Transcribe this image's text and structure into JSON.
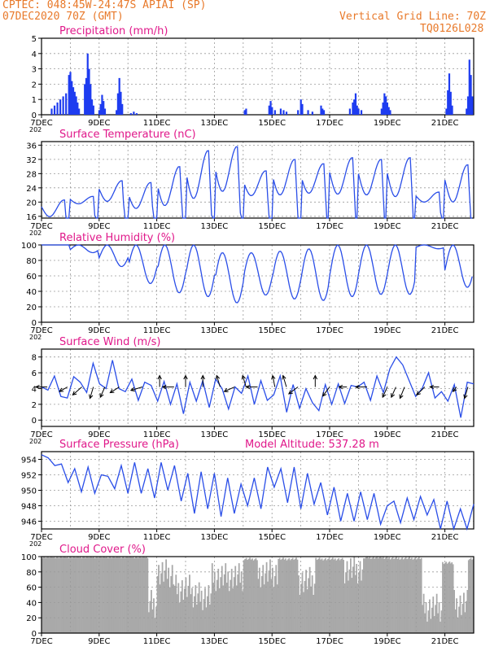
{
  "header": {
    "line1": "CPTEC:  048:45W-24:47S  APIAI (SP)",
    "line2": "07DEC2020 70Z (GMT)",
    "grid_note": "Vertical Grid Line: 70Z",
    "code": "TQ0126L028",
    "colors": {
      "header": "#e8792a",
      "title": "#e0188a",
      "line": "#2a4ee8",
      "bar": "#1e3cf0",
      "cloud": "#a9a9a9"
    }
  },
  "x_ticks": [
    "7DEC",
    "9DEC",
    "11DEC",
    "13DEC",
    "15DEC",
    "17DEC",
    "19DEC",
    "21DEC"
  ],
  "x_year_fragment": "202",
  "chart_data": [
    {
      "id": "precip",
      "type": "bar",
      "title": "Precipitation (mm/h)",
      "ylim": [
        0,
        5
      ],
      "yticks": [
        0,
        1,
        2,
        3,
        4,
        5
      ],
      "xlim_days": [
        0,
        15
      ],
      "grid": true,
      "events": [
        {
          "t": 0.35,
          "v": 0.4
        },
        {
          "t": 0.45,
          "v": 0.6
        },
        {
          "t": 0.55,
          "v": 0.8
        },
        {
          "t": 0.65,
          "v": 1.0
        },
        {
          "t": 0.75,
          "v": 1.2
        },
        {
          "t": 0.85,
          "v": 1.4
        },
        {
          "t": 0.95,
          "v": 2.6
        },
        {
          "t": 1.0,
          "v": 2.8
        },
        {
          "t": 1.05,
          "v": 2.2
        },
        {
          "t": 1.1,
          "v": 1.8
        },
        {
          "t": 1.15,
          "v": 1.5
        },
        {
          "t": 1.2,
          "v": 1.2
        },
        {
          "t": 1.25,
          "v": 0.8
        },
        {
          "t": 1.3,
          "v": 0.4
        },
        {
          "t": 1.5,
          "v": 2.0
        },
        {
          "t": 1.55,
          "v": 2.4
        },
        {
          "t": 1.6,
          "v": 4.0
        },
        {
          "t": 1.65,
          "v": 3.0
        },
        {
          "t": 1.7,
          "v": 2.0
        },
        {
          "t": 1.75,
          "v": 1.0
        },
        {
          "t": 1.8,
          "v": 0.6
        },
        {
          "t": 2.0,
          "v": 0.3
        },
        {
          "t": 2.05,
          "v": 0.7
        },
        {
          "t": 2.1,
          "v": 1.3
        },
        {
          "t": 2.15,
          "v": 0.9
        },
        {
          "t": 2.2,
          "v": 0.4
        },
        {
          "t": 2.6,
          "v": 0.3
        },
        {
          "t": 2.65,
          "v": 1.4
        },
        {
          "t": 2.7,
          "v": 2.4
        },
        {
          "t": 2.75,
          "v": 1.5
        },
        {
          "t": 2.8,
          "v": 0.7
        },
        {
          "t": 3.1,
          "v": 0.1
        },
        {
          "t": 3.2,
          "v": 0.2
        },
        {
          "t": 3.3,
          "v": 0.1
        },
        {
          "t": 7.05,
          "v": 0.3
        },
        {
          "t": 7.1,
          "v": 0.4
        },
        {
          "t": 7.9,
          "v": 0.6
        },
        {
          "t": 7.95,
          "v": 0.9
        },
        {
          "t": 8.0,
          "v": 0.5
        },
        {
          "t": 8.1,
          "v": 0.3
        },
        {
          "t": 8.3,
          "v": 0.4
        },
        {
          "t": 8.4,
          "v": 0.3
        },
        {
          "t": 8.5,
          "v": 0.2
        },
        {
          "t": 8.9,
          "v": 0.3
        },
        {
          "t": 9.0,
          "v": 1.0
        },
        {
          "t": 9.05,
          "v": 0.7
        },
        {
          "t": 9.25,
          "v": 0.3
        },
        {
          "t": 9.4,
          "v": 0.2
        },
        {
          "t": 9.7,
          "v": 0.6
        },
        {
          "t": 9.75,
          "v": 0.4
        },
        {
          "t": 9.8,
          "v": 0.3
        },
        {
          "t": 10.7,
          "v": 0.4
        },
        {
          "t": 10.8,
          "v": 0.8
        },
        {
          "t": 10.85,
          "v": 1.0
        },
        {
          "t": 10.9,
          "v": 1.4
        },
        {
          "t": 10.95,
          "v": 0.6
        },
        {
          "t": 11.0,
          "v": 0.4
        },
        {
          "t": 11.1,
          "v": 0.3
        },
        {
          "t": 11.8,
          "v": 0.4
        },
        {
          "t": 11.85,
          "v": 0.8
        },
        {
          "t": 11.9,
          "v": 1.4
        },
        {
          "t": 11.95,
          "v": 1.2
        },
        {
          "t": 12.0,
          "v": 0.8
        },
        {
          "t": 12.05,
          "v": 0.5
        },
        {
          "t": 12.1,
          "v": 0.3
        },
        {
          "t": 14.05,
          "v": 0.4
        },
        {
          "t": 14.1,
          "v": 1.6
        },
        {
          "t": 14.15,
          "v": 2.7
        },
        {
          "t": 14.2,
          "v": 1.5
        },
        {
          "t": 14.25,
          "v": 0.6
        },
        {
          "t": 14.75,
          "v": 0.4
        },
        {
          "t": 14.8,
          "v": 1.2
        },
        {
          "t": 14.85,
          "v": 3.6
        },
        {
          "t": 14.9,
          "v": 2.6
        },
        {
          "t": 14.95,
          "v": 1.2
        }
      ]
    },
    {
      "id": "temp",
      "type": "line",
      "title": "Surface Temperature (nC)",
      "ylim": [
        15.5,
        37
      ],
      "yticks": [
        16,
        20,
        24,
        28,
        32,
        36
      ],
      "xlim_days": [
        0,
        15
      ],
      "grid": true,
      "mins": [
        15.9,
        19.5,
        20.2,
        18.2,
        19.0,
        21.0,
        23.0,
        21.8,
        22.0,
        22.5,
        22.2,
        22.0,
        21.5,
        20.0,
        20.0,
        19.8
      ],
      "maxs": [
        20.6,
        21.6,
        26.0,
        25.5,
        30.0,
        34.5,
        35.6,
        28.8,
        32.0,
        30.8,
        32.5,
        32.0,
        32.5,
        22.8,
        30.5,
        28.0
      ]
    },
    {
      "id": "rh",
      "type": "line",
      "title": "Relative Humidity (%)",
      "ylim": [
        0,
        100
      ],
      "yticks": [
        0,
        20,
        40,
        60,
        80,
        100
      ],
      "xlim_days": [
        0,
        15
      ],
      "grid": true,
      "mins": [
        100,
        90,
        72,
        50,
        38,
        33,
        25,
        35,
        30,
        28,
        33,
        36,
        36,
        95,
        45,
        57
      ],
      "maxs": [
        100,
        100,
        100,
        100,
        100,
        100,
        90,
        90,
        92,
        95,
        100,
        100,
        100,
        100,
        100,
        95
      ]
    },
    {
      "id": "wind",
      "type": "line",
      "title": "Surface Wind (m/s)",
      "ylim": [
        -0.8,
        9
      ],
      "yticks": [
        0,
        2,
        4,
        6,
        8
      ],
      "xlim_days": [
        0,
        15
      ],
      "grid": true,
      "values": [
        4.2,
        3.8,
        5.6,
        3.0,
        2.8,
        5.5,
        4.8,
        3.5,
        7.2,
        4.6,
        4.0,
        7.6,
        4.0,
        3.6,
        5.2,
        2.5,
        4.8,
        4.4,
        2.4,
        4.9,
        2.0,
        4.6,
        0.8,
        4.8,
        2.4,
        5.0,
        1.6,
        5.2,
        4.0,
        1.4,
        4.2,
        3.4,
        5.6,
        2.0,
        5.0,
        2.5,
        3.2,
        5.6,
        1.0,
        4.5,
        1.5,
        4.0,
        2.2,
        1.2,
        4.5,
        2.0,
        4.6,
        2.1,
        4.4,
        4.2,
        4.8,
        2.5,
        5.6,
        3.5,
        6.5,
        8.0,
        7.0,
        5.0,
        3.0,
        4.0,
        6.0,
        2.8,
        3.6,
        2.4,
        4.5,
        0.3,
        4.8,
        4.6
      ],
      "vectors": [
        {
          "t": 0.2,
          "dx": -1,
          "dy": 0
        },
        {
          "t": 0.9,
          "dx": -0.7,
          "dy": -0.4
        },
        {
          "t": 1.4,
          "dx": -0.8,
          "dy": -0.7
        },
        {
          "t": 1.8,
          "dx": -0.3,
          "dy": -1
        },
        {
          "t": 2.2,
          "dx": -0.4,
          "dy": -0.9
        },
        {
          "t": 2.7,
          "dx": -0.8,
          "dy": -0.5
        },
        {
          "t": 3.5,
          "dx": -1,
          "dy": -0.3
        },
        {
          "t": 4.1,
          "dx": 0,
          "dy": 1
        },
        {
          "t": 4.6,
          "dx": -1,
          "dy": 0
        },
        {
          "t": 5.0,
          "dx": 0,
          "dy": 1
        },
        {
          "t": 5.6,
          "dx": 0,
          "dy": 1
        },
        {
          "t": 6.2,
          "dx": -0.3,
          "dy": 1
        },
        {
          "t": 6.7,
          "dx": -0.9,
          "dy": -0.4
        },
        {
          "t": 7.1,
          "dx": -0.3,
          "dy": 1
        },
        {
          "t": 7.5,
          "dx": -1,
          "dy": 0
        },
        {
          "t": 8.1,
          "dx": -0.2,
          "dy": 1
        },
        {
          "t": 8.5,
          "dx": -0.3,
          "dy": 1
        },
        {
          "t": 8.9,
          "dx": -0.8,
          "dy": -0.6
        },
        {
          "t": 9.5,
          "dx": 0,
          "dy": 1
        },
        {
          "t": 10.0,
          "dx": -0.6,
          "dy": -0.8
        },
        {
          "t": 10.6,
          "dx": -0.7,
          "dy": 0
        },
        {
          "t": 11.3,
          "dx": -1,
          "dy": 0
        },
        {
          "t": 12.0,
          "dx": -0.4,
          "dy": -0.9
        },
        {
          "t": 12.3,
          "dx": -0.4,
          "dy": -0.9
        },
        {
          "t": 12.6,
          "dx": -0.4,
          "dy": -1
        },
        {
          "t": 13.3,
          "dx": -0.7,
          "dy": -0.7
        },
        {
          "t": 13.8,
          "dx": -0.8,
          "dy": 0
        },
        {
          "t": 14.4,
          "dx": -0.3,
          "dy": -0.4
        },
        {
          "t": 14.8,
          "dx": -0.3,
          "dy": -1
        }
      ]
    },
    {
      "id": "pressure",
      "type": "line",
      "title": "Surface Pressure (hPa)",
      "subtitle": "Model Altitude: 537.28 m",
      "ylim": [
        945,
        955
      ],
      "yticks": [
        946,
        948,
        950,
        952,
        954
      ],
      "xlim_days": [
        0,
        15
      ],
      "grid": true,
      "values": [
        954.6,
        954.2,
        953.2,
        953.4,
        951.0,
        952.8,
        949.8,
        953.0,
        949.6,
        952.0,
        951.8,
        950.2,
        953.2,
        949.6,
        953.6,
        949.6,
        952.8,
        949.0,
        953.6,
        950.0,
        953.2,
        948.6,
        952.2,
        947.0,
        952.4,
        947.6,
        952.2,
        946.6,
        951.6,
        947.0,
        950.8,
        948.0,
        951.6,
        947.6,
        953.0,
        950.4,
        952.8,
        948.4,
        953.0,
        947.6,
        952.2,
        948.2,
        951.0,
        946.8,
        950.4,
        946.0,
        949.6,
        946.0,
        949.8,
        946.2,
        949.6,
        945.6,
        948.0,
        948.6,
        945.8,
        949.0,
        946.2,
        949.2,
        946.8,
        948.8,
        945.0,
        948.6,
        944.6,
        947.6,
        945.0,
        948.2
      ]
    },
    {
      "id": "cloud",
      "type": "area",
      "title": "Cloud Cover (%)",
      "ylim": [
        0,
        100
      ],
      "yticks": [
        0,
        20,
        40,
        60,
        80,
        100
      ],
      "xlim_days": [
        0,
        15
      ],
      "grid": true,
      "segments": [
        {
          "from": 0.0,
          "to": 3.7,
          "v": 98
        },
        {
          "from": 3.7,
          "to": 4.0,
          "v": 40
        },
        {
          "from": 4.0,
          "to": 4.6,
          "v": 80
        },
        {
          "from": 4.6,
          "to": 5.2,
          "v": 60
        },
        {
          "from": 5.2,
          "to": 5.9,
          "v": 50
        },
        {
          "from": 5.9,
          "to": 7.0,
          "v": 75
        },
        {
          "from": 7.0,
          "to": 7.5,
          "v": 95
        },
        {
          "from": 7.5,
          "to": 8.2,
          "v": 80
        },
        {
          "from": 8.2,
          "to": 8.9,
          "v": 95
        },
        {
          "from": 8.9,
          "to": 9.5,
          "v": 70
        },
        {
          "from": 9.5,
          "to": 10.5,
          "v": 95
        },
        {
          "from": 10.5,
          "to": 11.2,
          "v": 85
        },
        {
          "from": 11.2,
          "to": 12.0,
          "v": 97
        },
        {
          "from": 12.0,
          "to": 13.2,
          "v": 96
        },
        {
          "from": 13.2,
          "to": 13.9,
          "v": 35
        },
        {
          "from": 13.9,
          "to": 14.3,
          "v": 90
        },
        {
          "from": 14.3,
          "to": 14.8,
          "v": 40
        },
        {
          "from": 14.8,
          "to": 15.0,
          "v": 95
        }
      ]
    }
  ]
}
